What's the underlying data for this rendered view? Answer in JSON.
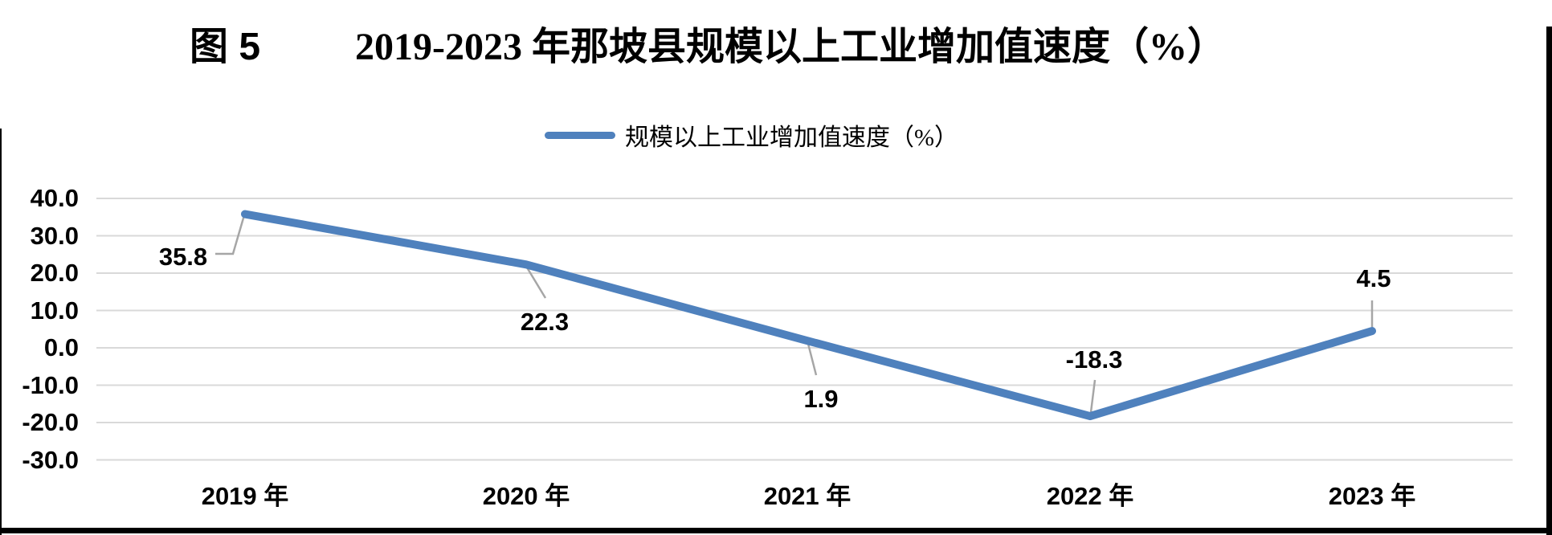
{
  "title": {
    "figure_label": "图 5",
    "text": "2019-2023 年那坡县规模以上工业增加值速度（%）"
  },
  "legend": {
    "label": "规模以上工业增加值速度（%）"
  },
  "chart_data": {
    "type": "line",
    "title": "图 5  2019-2023 年那坡县规模以上工业增加值速度（%）",
    "categories": [
      "2019 年",
      "2020 年",
      "2021 年",
      "2022 年",
      "2023 年"
    ],
    "series": [
      {
        "name": "规模以上工业增加值速度（%）",
        "values": [
          35.8,
          22.3,
          1.9,
          -18.3,
          4.5
        ]
      }
    ],
    "data_labels": [
      "35.8",
      "22.3",
      "1.9",
      "-18.3",
      "4.5"
    ],
    "yticks": [
      40,
      30,
      20,
      10,
      0,
      -10,
      -20,
      -30
    ],
    "ytick_labels": [
      "40.0",
      "30.0",
      "20.0",
      "10.0",
      "0.0",
      "-10.0",
      "-20.0",
      "-30.0"
    ],
    "ylim": [
      -30,
      40
    ],
    "xlabel": "",
    "ylabel": "",
    "grid": true,
    "legend_position": "top-center",
    "colors": {
      "line": "#4f81bd",
      "gridline": "#d9d9d9",
      "leader": "#a6a6a6",
      "text": "#000000",
      "background": "#ffffff"
    }
  }
}
